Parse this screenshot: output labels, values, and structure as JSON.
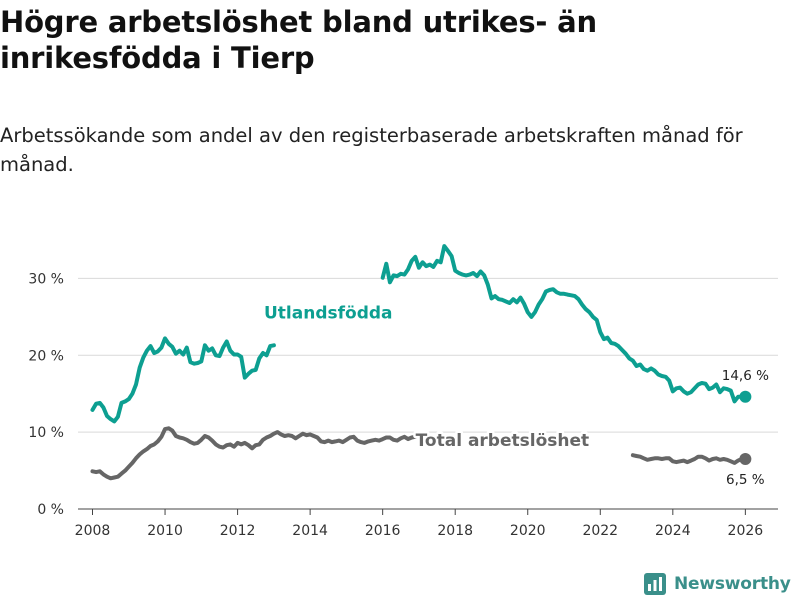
{
  "header": {
    "title": "Högre arbetslöshet bland utrikes- än inrikesfödda i Tierp",
    "subtitle": "Arbetssökande som andel av den registerbaserade arbetskraften månad för månad."
  },
  "brand": {
    "name": "Newsworthy",
    "logo_icon": "bar-chart-logo-icon",
    "color": "#3a8f8a"
  },
  "chart_data": {
    "type": "line",
    "title": "Högre arbetslöshet bland utrikes- än inrikesfödda i Tierp",
    "subtitle": "Arbetssökande som andel av den registerbaserade arbetskraften månad för månad.",
    "xlabel": "",
    "ylabel": "",
    "xlim": [
      2007.6,
      2026.9
    ],
    "ylim": [
      0,
      35
    ],
    "x_ticks": [
      2008,
      2010,
      2012,
      2014,
      2016,
      2018,
      2020,
      2022,
      2024,
      2026
    ],
    "y_ticks": [
      {
        "value": 0,
        "label": "0 %"
      },
      {
        "value": 10,
        "label": "10 %"
      },
      {
        "value": 20,
        "label": "20 %"
      },
      {
        "value": 30,
        "label": "30 %"
      }
    ],
    "grid": true,
    "series": [
      {
        "name": "Utlandsfödda",
        "color": "#0d9f91",
        "label_at": [
          2014.5,
          24.8
        ],
        "end_label": "14,6 %",
        "points": [
          [
            2008.0,
            12.9
          ],
          [
            2008.1,
            13.7
          ],
          [
            2008.2,
            13.8
          ],
          [
            2008.3,
            13.2
          ],
          [
            2008.4,
            12.1
          ],
          [
            2008.5,
            11.7
          ],
          [
            2008.6,
            11.4
          ],
          [
            2008.7,
            12.0
          ],
          [
            2008.8,
            13.8
          ],
          [
            2008.9,
            14.0
          ],
          [
            2009.0,
            14.3
          ],
          [
            2009.1,
            15.0
          ],
          [
            2009.2,
            16.2
          ],
          [
            2009.3,
            18.4
          ],
          [
            2009.4,
            19.7
          ],
          [
            2009.5,
            20.6
          ],
          [
            2009.6,
            21.2
          ],
          [
            2009.7,
            20.3
          ],
          [
            2009.8,
            20.5
          ],
          [
            2009.9,
            21.0
          ],
          [
            2010.0,
            22.2
          ],
          [
            2010.1,
            21.5
          ],
          [
            2010.2,
            21.1
          ],
          [
            2010.3,
            20.2
          ],
          [
            2010.4,
            20.6
          ],
          [
            2010.5,
            20.1
          ],
          [
            2010.6,
            21.0
          ],
          [
            2010.7,
            19.1
          ],
          [
            2010.8,
            18.9
          ],
          [
            2010.9,
            19.0
          ],
          [
            2011.0,
            19.2
          ],
          [
            2011.1,
            21.3
          ],
          [
            2011.2,
            20.6
          ],
          [
            2011.3,
            20.9
          ],
          [
            2011.4,
            20.0
          ],
          [
            2011.5,
            19.9
          ],
          [
            2011.6,
            21.0
          ],
          [
            2011.7,
            21.8
          ],
          [
            2011.8,
            20.6
          ],
          [
            2011.9,
            20.1
          ],
          [
            2012.0,
            20.1
          ],
          [
            2012.1,
            19.8
          ],
          [
            2012.2,
            17.1
          ],
          [
            2012.3,
            17.6
          ],
          [
            2012.4,
            18.0
          ],
          [
            2012.5,
            18.1
          ],
          [
            2012.6,
            19.6
          ],
          [
            2012.7,
            20.3
          ],
          [
            2012.8,
            20.0
          ],
          [
            2012.9,
            21.2
          ],
          [
            2013.0,
            21.3
          ]
        ]
      },
      {
        "name": "Utlandsfödda",
        "color": "#0d9f91",
        "points": [
          [
            2016.0,
            30.1
          ],
          [
            2016.1,
            31.9
          ],
          [
            2016.2,
            29.5
          ],
          [
            2016.3,
            30.4
          ],
          [
            2016.4,
            30.3
          ],
          [
            2016.5,
            30.6
          ],
          [
            2016.6,
            30.5
          ],
          [
            2016.7,
            31.2
          ],
          [
            2016.8,
            32.3
          ],
          [
            2016.9,
            32.8
          ],
          [
            2017.0,
            31.4
          ],
          [
            2017.1,
            32.1
          ],
          [
            2017.2,
            31.6
          ],
          [
            2017.3,
            31.8
          ],
          [
            2017.4,
            31.5
          ],
          [
            2017.5,
            32.3
          ],
          [
            2017.6,
            32.1
          ],
          [
            2017.7,
            34.2
          ],
          [
            2017.8,
            33.6
          ],
          [
            2017.9,
            32.9
          ],
          [
            2018.0,
            31.0
          ],
          [
            2018.1,
            30.7
          ],
          [
            2018.2,
            30.5
          ],
          [
            2018.3,
            30.4
          ],
          [
            2018.4,
            30.5
          ],
          [
            2018.5,
            30.7
          ],
          [
            2018.6,
            30.3
          ],
          [
            2018.7,
            30.9
          ],
          [
            2018.8,
            30.4
          ],
          [
            2018.9,
            29.2
          ],
          [
            2019.0,
            27.4
          ],
          [
            2019.1,
            27.7
          ],
          [
            2019.2,
            27.3
          ],
          [
            2019.3,
            27.2
          ],
          [
            2019.4,
            27.0
          ],
          [
            2019.5,
            26.8
          ],
          [
            2019.6,
            27.3
          ],
          [
            2019.7,
            26.9
          ],
          [
            2019.8,
            27.5
          ],
          [
            2019.9,
            26.7
          ],
          [
            2020.0,
            25.6
          ],
          [
            2020.1,
            25.0
          ],
          [
            2020.2,
            25.6
          ],
          [
            2020.3,
            26.6
          ],
          [
            2020.4,
            27.3
          ],
          [
            2020.5,
            28.3
          ],
          [
            2020.6,
            28.5
          ],
          [
            2020.7,
            28.6
          ],
          [
            2020.8,
            28.2
          ],
          [
            2020.9,
            28.0
          ],
          [
            2021.0,
            28.0
          ],
          [
            2021.1,
            27.9
          ],
          [
            2021.2,
            27.8
          ],
          [
            2021.3,
            27.7
          ],
          [
            2021.4,
            27.3
          ],
          [
            2021.5,
            26.6
          ],
          [
            2021.6,
            26.0
          ],
          [
            2021.7,
            25.6
          ],
          [
            2021.8,
            25.0
          ],
          [
            2021.9,
            24.6
          ],
          [
            2022.0,
            23.0
          ],
          [
            2022.1,
            22.1
          ],
          [
            2022.2,
            22.3
          ],
          [
            2022.3,
            21.6
          ],
          [
            2022.4,
            21.5
          ],
          [
            2022.5,
            21.2
          ],
          [
            2022.6,
            20.7
          ],
          [
            2022.7,
            20.2
          ],
          [
            2022.8,
            19.6
          ],
          [
            2022.9,
            19.3
          ],
          [
            2023.0,
            18.6
          ],
          [
            2023.1,
            18.8
          ],
          [
            2023.2,
            18.2
          ],
          [
            2023.3,
            18.0
          ],
          [
            2023.4,
            18.3
          ],
          [
            2023.5,
            18.0
          ],
          [
            2023.6,
            17.5
          ],
          [
            2023.7,
            17.3
          ],
          [
            2023.8,
            17.2
          ],
          [
            2023.9,
            16.7
          ],
          [
            2024.0,
            15.3
          ],
          [
            2024.1,
            15.7
          ],
          [
            2024.2,
            15.8
          ],
          [
            2024.3,
            15.3
          ],
          [
            2024.4,
            15.0
          ],
          [
            2024.5,
            15.2
          ],
          [
            2024.6,
            15.7
          ],
          [
            2024.7,
            16.2
          ],
          [
            2024.8,
            16.4
          ],
          [
            2024.9,
            16.3
          ],
          [
            2025.0,
            15.6
          ],
          [
            2025.1,
            15.8
          ],
          [
            2025.2,
            16.2
          ],
          [
            2025.3,
            15.2
          ],
          [
            2025.4,
            15.7
          ],
          [
            2025.5,
            15.6
          ],
          [
            2025.6,
            15.4
          ],
          [
            2025.7,
            14.0
          ],
          [
            2025.8,
            14.6
          ],
          [
            2025.9,
            14.6
          ],
          [
            2026.0,
            14.6
          ]
        ]
      },
      {
        "name": "Total arbetslöshet",
        "color": "#666666",
        "label_at": [
          2019.3,
          8.2
        ],
        "end_label": "6,5 %",
        "points": [
          [
            2008.0,
            4.9
          ],
          [
            2008.1,
            4.8
          ],
          [
            2008.2,
            4.9
          ],
          [
            2008.3,
            4.5
          ],
          [
            2008.4,
            4.2
          ],
          [
            2008.5,
            4.0
          ],
          [
            2008.6,
            4.1
          ],
          [
            2008.7,
            4.2
          ],
          [
            2008.8,
            4.6
          ],
          [
            2008.9,
            5.0
          ],
          [
            2009.0,
            5.5
          ],
          [
            2009.1,
            6.0
          ],
          [
            2009.2,
            6.6
          ],
          [
            2009.3,
            7.1
          ],
          [
            2009.4,
            7.5
          ],
          [
            2009.5,
            7.8
          ],
          [
            2009.6,
            8.2
          ],
          [
            2009.7,
            8.4
          ],
          [
            2009.8,
            8.8
          ],
          [
            2009.9,
            9.4
          ],
          [
            2010.0,
            10.4
          ],
          [
            2010.1,
            10.5
          ],
          [
            2010.2,
            10.2
          ],
          [
            2010.3,
            9.5
          ],
          [
            2010.4,
            9.3
          ],
          [
            2010.5,
            9.2
          ],
          [
            2010.6,
            9.0
          ],
          [
            2010.7,
            8.7
          ],
          [
            2010.8,
            8.5
          ],
          [
            2010.9,
            8.6
          ],
          [
            2011.0,
            9.0
          ],
          [
            2011.1,
            9.5
          ],
          [
            2011.2,
            9.3
          ],
          [
            2011.3,
            8.9
          ],
          [
            2011.4,
            8.4
          ],
          [
            2011.5,
            8.1
          ],
          [
            2011.6,
            8.0
          ],
          [
            2011.7,
            8.3
          ],
          [
            2011.8,
            8.4
          ],
          [
            2011.9,
            8.1
          ],
          [
            2012.0,
            8.6
          ],
          [
            2012.1,
            8.4
          ],
          [
            2012.2,
            8.6
          ],
          [
            2012.3,
            8.3
          ],
          [
            2012.4,
            7.9
          ],
          [
            2012.5,
            8.3
          ],
          [
            2012.6,
            8.4
          ],
          [
            2012.7,
            9.0
          ],
          [
            2012.8,
            9.3
          ],
          [
            2012.9,
            9.5
          ],
          [
            2013.0,
            9.8
          ],
          [
            2013.1,
            10.0
          ],
          [
            2013.2,
            9.7
          ],
          [
            2013.3,
            9.5
          ],
          [
            2013.4,
            9.6
          ],
          [
            2013.5,
            9.5
          ],
          [
            2013.6,
            9.2
          ],
          [
            2013.7,
            9.5
          ],
          [
            2013.8,
            9.8
          ],
          [
            2013.9,
            9.6
          ],
          [
            2014.0,
            9.7
          ],
          [
            2014.1,
            9.5
          ],
          [
            2014.2,
            9.3
          ],
          [
            2014.3,
            8.8
          ],
          [
            2014.4,
            8.7
          ],
          [
            2014.5,
            8.9
          ],
          [
            2014.6,
            8.7
          ],
          [
            2014.7,
            8.8
          ],
          [
            2014.8,
            8.9
          ],
          [
            2014.9,
            8.7
          ],
          [
            2015.0,
            9.0
          ],
          [
            2015.1,
            9.3
          ],
          [
            2015.2,
            9.4
          ],
          [
            2015.3,
            8.9
          ],
          [
            2015.4,
            8.7
          ],
          [
            2015.5,
            8.6
          ],
          [
            2015.6,
            8.8
          ],
          [
            2015.7,
            8.9
          ],
          [
            2015.8,
            9.0
          ],
          [
            2015.9,
            8.9
          ],
          [
            2016.0,
            9.1
          ],
          [
            2016.1,
            9.3
          ],
          [
            2016.2,
            9.3
          ],
          [
            2016.3,
            9.0
          ],
          [
            2016.4,
            8.9
          ],
          [
            2016.5,
            9.2
          ],
          [
            2016.6,
            9.4
          ],
          [
            2016.7,
            9.1
          ],
          [
            2016.8,
            9.3
          ],
          [
            2016.9,
            9.4
          ],
          [
            2017.0,
            9.7
          ],
          [
            2017.1,
            9.6
          ],
          [
            2017.2,
            9.4
          ]
        ]
      },
      {
        "name": "Total arbetslöshet",
        "color": "#666666",
        "points": [
          [
            2022.9,
            7.0
          ],
          [
            2023.0,
            6.9
          ],
          [
            2023.1,
            6.8
          ],
          [
            2023.2,
            6.6
          ],
          [
            2023.3,
            6.4
          ],
          [
            2023.4,
            6.5
          ],
          [
            2023.5,
            6.6
          ],
          [
            2023.6,
            6.6
          ],
          [
            2023.7,
            6.5
          ],
          [
            2023.8,
            6.6
          ],
          [
            2023.9,
            6.6
          ],
          [
            2024.0,
            6.2
          ],
          [
            2024.1,
            6.1
          ],
          [
            2024.2,
            6.2
          ],
          [
            2024.3,
            6.3
          ],
          [
            2024.4,
            6.1
          ],
          [
            2024.5,
            6.3
          ],
          [
            2024.6,
            6.5
          ],
          [
            2024.7,
            6.8
          ],
          [
            2024.8,
            6.8
          ],
          [
            2024.9,
            6.6
          ],
          [
            2025.0,
            6.3
          ],
          [
            2025.1,
            6.5
          ],
          [
            2025.2,
            6.6
          ],
          [
            2025.3,
            6.4
          ],
          [
            2025.4,
            6.5
          ],
          [
            2025.5,
            6.4
          ],
          [
            2025.6,
            6.2
          ],
          [
            2025.7,
            6.0
          ],
          [
            2025.8,
            6.3
          ],
          [
            2025.9,
            6.5
          ],
          [
            2026.0,
            6.5
          ]
        ]
      }
    ],
    "end_markers": [
      {
        "series": "Utlandsfödda",
        "x": 2026.0,
        "y": 14.6,
        "label": "14,6 %",
        "color": "#0d9f91",
        "label_side": "above"
      },
      {
        "series": "Total arbetslöshet",
        "x": 2026.0,
        "y": 6.5,
        "label": "6,5 %",
        "color": "#666666",
        "label_side": "below"
      }
    ]
  }
}
